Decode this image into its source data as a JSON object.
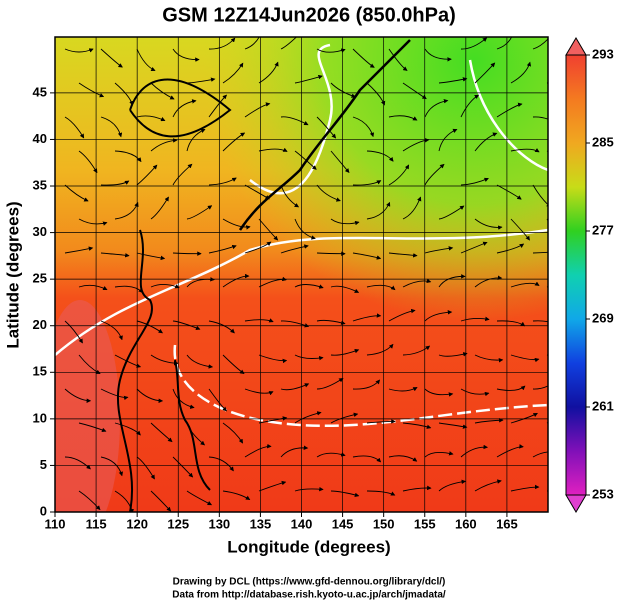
{
  "title": "GSM 12Z14Jun2026 (850.0hPa)",
  "map": {
    "xlabel": "Longitude (degrees)",
    "ylabel": "Latitude  (degrees)",
    "xlim": [
      110,
      170
    ],
    "ylim": [
      0,
      51
    ],
    "xticks": [
      110,
      115,
      120,
      125,
      130,
      135,
      140,
      145,
      150,
      155,
      160,
      165
    ],
    "yticks": [
      0,
      5,
      10,
      15,
      20,
      25,
      30,
      35,
      40,
      45
    ]
  },
  "colorbar": {
    "lim": [
      253,
      293
    ],
    "ticks": [
      293,
      285,
      277,
      269,
      261,
      253
    ]
  },
  "credits": [
    "Drawing by DCL (https://www.gfd-dennou.org/library/dcl/)",
    "Data from http://database.rish.kyoto-u.ac.jp/arch/jmadata/"
  ]
}
